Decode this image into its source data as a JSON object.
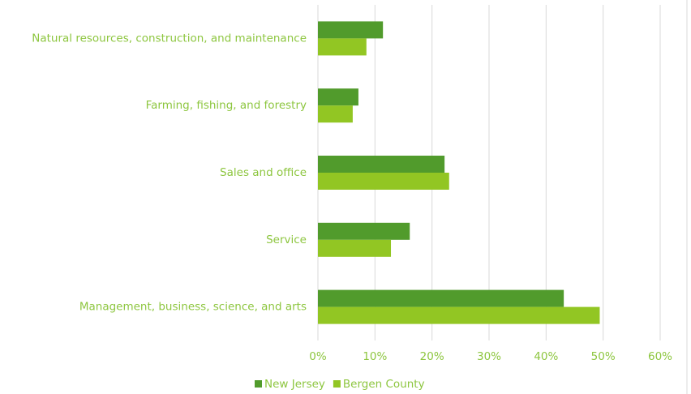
{
  "chart_data": {
    "type": "bar",
    "orientation": "horizontal",
    "categories": [
      "Natural resources, construction, and maintenance",
      "Farming, fishing, and forestry",
      "Sales and office",
      "Service",
      "Management, business, science, and arts"
    ],
    "series": [
      {
        "name": "New Jersey",
        "color": "#519b2c",
        "values": [
          11.4,
          7.1,
          22.2,
          16.1,
          43.1
        ]
      },
      {
        "name": "Bergen County",
        "color": "#92c623",
        "values": [
          8.5,
          6.1,
          23.0,
          12.8,
          49.4
        ]
      }
    ],
    "xlim": [
      0,
      60
    ],
    "xticks": [
      {
        "value": 0,
        "label": "0%"
      },
      {
        "value": 10,
        "label": "10%"
      },
      {
        "value": 20,
        "label": "20%"
      },
      {
        "value": 30,
        "label": "30%"
      },
      {
        "value": 40,
        "label": "40%"
      },
      {
        "value": 50,
        "label": "50%"
      },
      {
        "value": 60,
        "label": "60%"
      }
    ],
    "grid": true,
    "legend": "bottom"
  }
}
